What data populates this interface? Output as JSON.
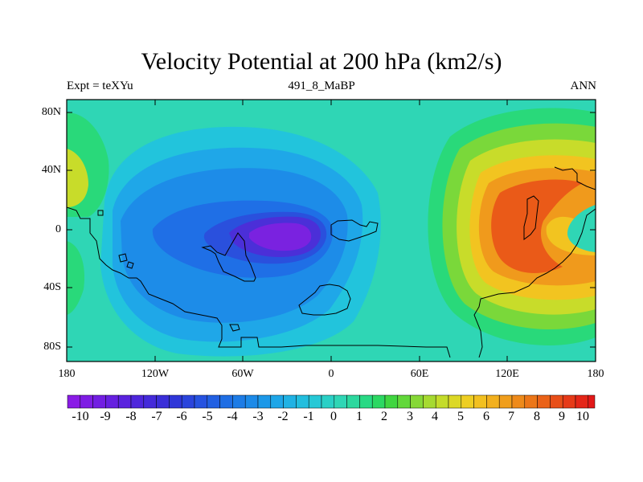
{
  "title": "Velocity Potential at 200 hPa (km2/s)",
  "subtitle_left": "Expt = teXYu",
  "subtitle_center": "491_8_MaBP",
  "subtitle_right": "ANN",
  "lat_ticks": [
    "80N",
    "40N",
    "0",
    "40S",
    "80S"
  ],
  "lon_ticks": [
    "180",
    "120W",
    "60W",
    "0",
    "60E",
    "120E",
    "180"
  ],
  "colorbar_labels": [
    "-10",
    "-9",
    "-8",
    "-7",
    "-6",
    "-5",
    "-4",
    "-3",
    "-2",
    "-1",
    "0",
    "1",
    "2",
    "3",
    "4",
    "5",
    "6",
    "7",
    "8",
    "9",
    "10"
  ],
  "colors": {
    "background": "#2fd6b5",
    "frame": "#000000"
  }
}
